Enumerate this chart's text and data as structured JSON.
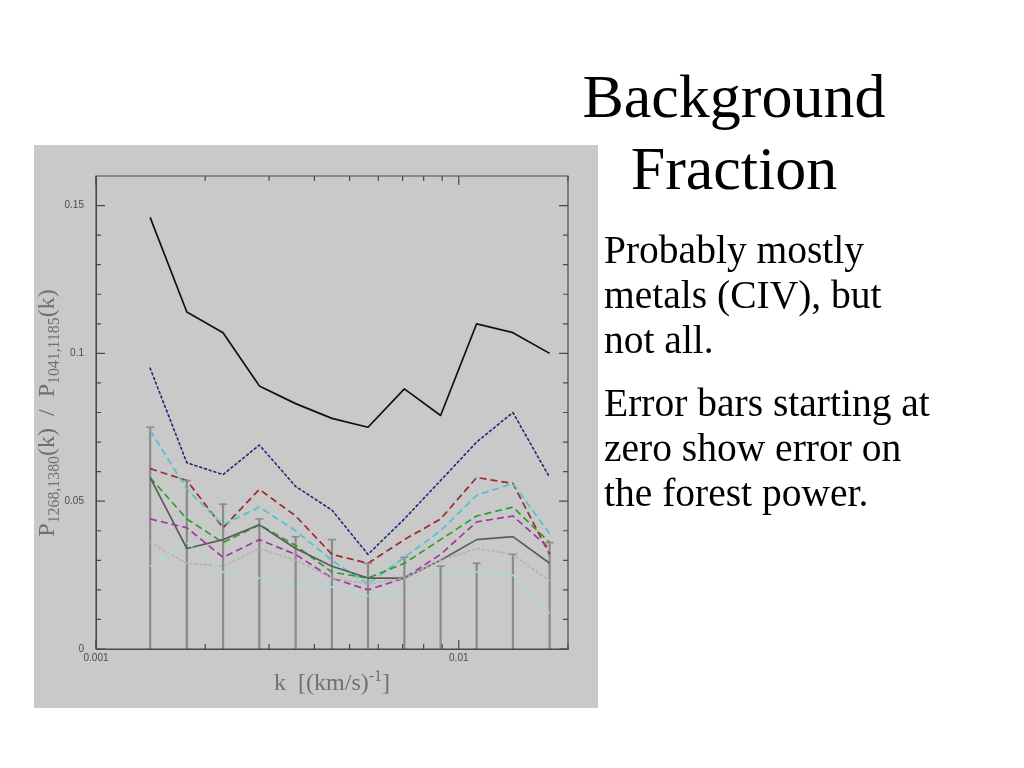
{
  "chart_data": {
    "type": "line",
    "title": "Background Fraction",
    "xlabel": "k  [(km/s)$^{-1}$]",
    "ylabel": "P$_{1268,1380}$(k)  /  P$_{1041,1185}$(k)",
    "annotations": [
      "Probably mostly metals (CIV), but not all.",
      "Error bars starting at zero show error on the forest power."
    ],
    "x": [
      0.00141,
      0.00178,
      0.00224,
      0.00282,
      0.00355,
      0.00447,
      0.00562,
      0.00708,
      0.00891,
      0.0112,
      0.0141,
      0.0178
    ],
    "log": "x",
    "xlim": [
      0.001,
      0.02
    ],
    "xticks": [
      0.001,
      {
        "value": 0.002,
        "label": null
      },
      {
        "value": 0.003,
        "label": null
      },
      {
        "value": 0.004,
        "label": null
      },
      {
        "value": 0.005,
        "label": null
      },
      {
        "value": 0.006,
        "label": null
      },
      {
        "value": 0.007,
        "label": null
      },
      {
        "value": 0.008,
        "label": null
      },
      {
        "value": 0.009,
        "label": null
      },
      0.01,
      {
        "value": 0.02,
        "label": null
      }
    ],
    "ylim": [
      0,
      0.16
    ],
    "yticks": [
      0,
      {
        "value": 0.01,
        "label": null
      },
      {
        "value": 0.02,
        "label": null
      },
      {
        "value": 0.03,
        "label": null
      },
      {
        "value": 0.04,
        "label": null
      },
      0.05,
      {
        "value": 0.06,
        "label": null
      },
      {
        "value": 0.07,
        "label": null
      },
      {
        "value": 0.08,
        "label": null
      },
      {
        "value": 0.09,
        "label": null
      },
      0.1,
      {
        "value": 0.11,
        "label": null
      },
      {
        "value": 0.12,
        "label": null
      },
      {
        "value": 0.13,
        "label": null
      },
      {
        "value": 0.14,
        "label": null
      },
      0.15
    ],
    "grid": false,
    "legend": false,
    "marker": "none",
    "series": [
      {
        "type": "bar",
        "color": "#8c8c8c",
        "values": [
          0.075,
          0.057,
          0.049,
          0.044,
          0.038,
          0.037,
          0.029,
          0.031,
          0.028,
          0.029,
          0.032,
          0.036
        ]
      },
      {
        "color": "#a8dadc",
        "line_style": "dashed",
        "values": [
          0.028,
          0.036,
          0.026,
          0.024,
          0.022,
          0.021,
          0.018,
          0.018,
          0.026,
          0.026,
          0.025,
          0.012
        ]
      },
      {
        "color": "#b2b2b2",
        "line_style": "dotted",
        "values": [
          0.036,
          0.029,
          0.028,
          0.034,
          0.03,
          0.024,
          0.022,
          0.024,
          0.03,
          0.034,
          0.032,
          0.023
        ]
      },
      {
        "color": "#5c5c5c",
        "line_style": "solid",
        "values": [
          0.058,
          0.034,
          0.037,
          0.042,
          0.034,
          0.028,
          0.024,
          0.024,
          0.03,
          0.037,
          0.038,
          0.029
        ]
      },
      {
        "color": "#a834a8",
        "line_style": "dashed",
        "values": [
          0.044,
          0.041,
          0.031,
          0.037,
          0.032,
          0.024,
          0.02,
          0.024,
          0.032,
          0.043,
          0.045,
          0.034
        ]
      },
      {
        "color": "#2e9e2e",
        "line_style": "dashed",
        "values": [
          0.058,
          0.044,
          0.036,
          0.042,
          0.035,
          0.026,
          0.024,
          0.029,
          0.037,
          0.045,
          0.048,
          0.036
        ]
      },
      {
        "color": "#4cc4cc",
        "line_style": "dashed",
        "values": [
          0.074,
          0.054,
          0.042,
          0.048,
          0.04,
          0.03,
          0.022,
          0.031,
          0.04,
          0.052,
          0.056,
          0.039
        ]
      },
      {
        "color": "#9c2c2c",
        "line_style": "dashed",
        "values": [
          0.061,
          0.057,
          0.041,
          0.054,
          0.045,
          0.032,
          0.029,
          0.037,
          0.044,
          0.058,
          0.056,
          0.032
        ]
      },
      {
        "color": "#24247a",
        "line_style": "dotted",
        "values": [
          0.095,
          0.063,
          0.059,
          0.069,
          0.055,
          0.047,
          0.032,
          0.044,
          0.057,
          0.07,
          0.08,
          0.058
        ]
      },
      {
        "color": "#111111",
        "line_style": "solid",
        "values": [
          0.146,
          0.114,
          0.107,
          0.089,
          0.083,
          0.078,
          0.075,
          0.088,
          0.079,
          0.11,
          0.107,
          0.1
        ]
      }
    ]
  }
}
